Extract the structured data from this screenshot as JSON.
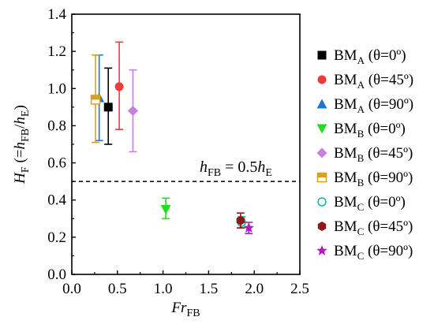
{
  "chart_data": {
    "type": "scatter",
    "xlabel": {
      "base": "Fr",
      "sub": "FB"
    },
    "ylabel": {
      "parts": [
        {
          "text": "H",
          "italic": true
        },
        {
          "text": "F",
          "sub": true
        },
        {
          "text": " (="
        },
        {
          "text": "h",
          "italic": true
        },
        {
          "text": "FB",
          "sub": true
        },
        {
          "text": "/"
        },
        {
          "text": "h",
          "italic": true
        },
        {
          "text": "E",
          "sub": true
        },
        {
          "text": ")"
        }
      ]
    },
    "xlim": [
      0,
      2.5
    ],
    "ylim": [
      0,
      1.4
    ],
    "xticks": [
      "0.0",
      "0.5",
      "1.0",
      "1.5",
      "2.0",
      "2.5"
    ],
    "yticks": [
      "0.0",
      "0.2",
      "0.4",
      "0.6",
      "0.8",
      "1.0",
      "1.2",
      "1.4"
    ],
    "grid": false,
    "legend_position": "right",
    "reference_line": {
      "y": 0.5,
      "style": "dashed"
    },
    "annotation": {
      "parts": [
        {
          "text": "h",
          "italic": true
        },
        {
          "text": "FB",
          "sub": true
        },
        {
          "text": " = 0.5"
        },
        {
          "text": "h",
          "italic": true
        },
        {
          "text": "E",
          "sub": true
        }
      ]
    },
    "series": [
      {
        "name": {
          "base": "BM",
          "sub": "A",
          "rest": " (θ=0º)"
        },
        "color": "#000000",
        "marker": "square",
        "x": 0.4,
        "y": 0.9,
        "ylow": 0.7,
        "yhigh": 1.11
      },
      {
        "name": {
          "base": "BM",
          "sub": "A",
          "rest": " (θ=45º)"
        },
        "color": "#ee3b3b",
        "marker": "circle",
        "x": 0.52,
        "y": 1.01,
        "ylow": 0.78,
        "yhigh": 1.25
      },
      {
        "name": {
          "base": "BM",
          "sub": "A",
          "rest": " (θ=90º)"
        },
        "color": "#1f77d4",
        "marker": "triangle-up",
        "x": 0.3,
        "y": 0.95,
        "ylow": 0.72,
        "yhigh": 1.18
      },
      {
        "name": {
          "base": "BM",
          "sub": "B",
          "rest": " (θ=0º)"
        },
        "color": "#22dd22",
        "marker": "triangle-down",
        "x": 1.03,
        "y": 0.35,
        "ylow": 0.3,
        "yhigh": 0.41
      },
      {
        "name": {
          "base": "BM",
          "sub": "B",
          "rest": " (θ=45º)"
        },
        "color": "#c77fe0",
        "marker": "diamond",
        "x": 0.67,
        "y": 0.88,
        "ylow": 0.66,
        "yhigh": 1.1
      },
      {
        "name": {
          "base": "BM",
          "sub": "B",
          "rest": " (θ=90º)"
        },
        "color": "#d9a020",
        "marker": "half-square",
        "x": 0.26,
        "y": 0.94,
        "ylow": 0.71,
        "yhigh": 1.18
      },
      {
        "name": {
          "base": "BM",
          "sub": "C",
          "rest": " (θ=0º)"
        },
        "color": "#18b4a8",
        "marker": "open-circle",
        "x": 1.86,
        "y": 0.28,
        "ylow": 0.25,
        "yhigh": 0.31
      },
      {
        "name": {
          "base": "BM",
          "sub": "C",
          "rest": " (θ=45º)"
        },
        "color": "#8b1a1a",
        "marker": "hexagon",
        "x": 1.85,
        "y": 0.29,
        "ylow": 0.25,
        "yhigh": 0.33
      },
      {
        "name": {
          "base": "BM",
          "sub": "C",
          "rest": " (θ=90º)"
        },
        "color": "#b01cc0",
        "marker": "star",
        "x": 1.94,
        "y": 0.25,
        "ylow": 0.22,
        "yhigh": 0.28
      }
    ]
  }
}
